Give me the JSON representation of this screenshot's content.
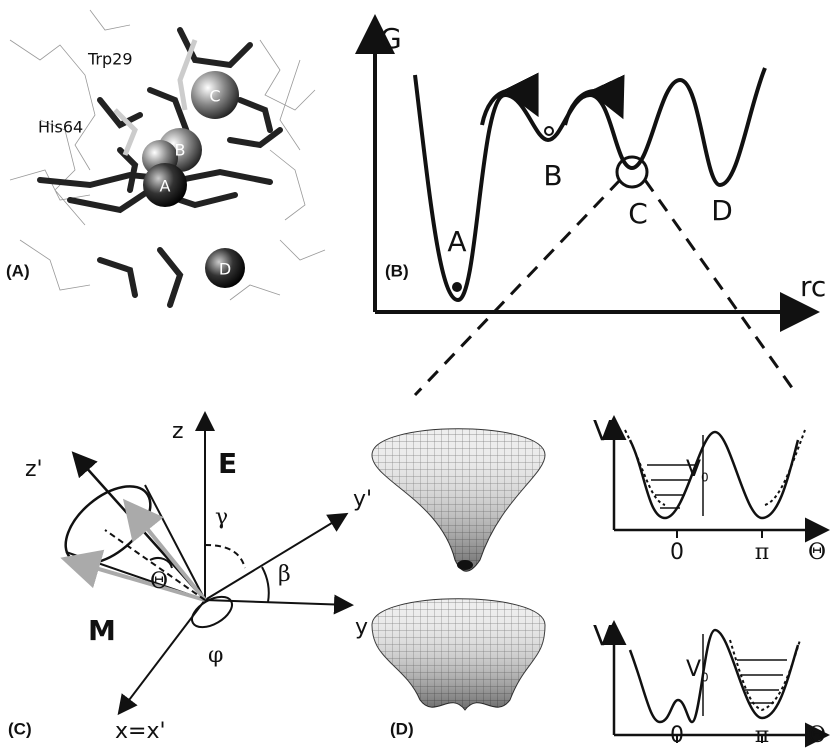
{
  "panel_a": {
    "label": "(A)",
    "residues": [
      "Trp29",
      "His64"
    ],
    "sites": [
      "A",
      "B",
      "C",
      "D"
    ]
  },
  "panel_b": {
    "label": "(B)",
    "y_axis": "G",
    "x_axis": "rc",
    "states": [
      "A",
      "B",
      "C",
      "D"
    ]
  },
  "panel_c": {
    "label": "(C)",
    "axes": {
      "z": "z",
      "z_prime": "z'",
      "y": "y",
      "y_prime": "y'",
      "x": "x=x'"
    },
    "field": "E",
    "dipole": "M",
    "angles": {
      "theta": "Θ",
      "gamma": "γ",
      "beta": "β",
      "phi": "φ"
    }
  },
  "panel_d": {
    "label": "(D)",
    "plots": [
      {
        "y_axis": "V",
        "barrier": "V",
        "barrier_sub": "0",
        "ticks": [
          "0",
          "π"
        ],
        "x_axis": "Θ"
      },
      {
        "y_axis": "V",
        "barrier": "V",
        "barrier_sub": "0",
        "ticks": [
          "0",
          "π"
        ],
        "x_axis": "Θ"
      }
    ]
  }
}
